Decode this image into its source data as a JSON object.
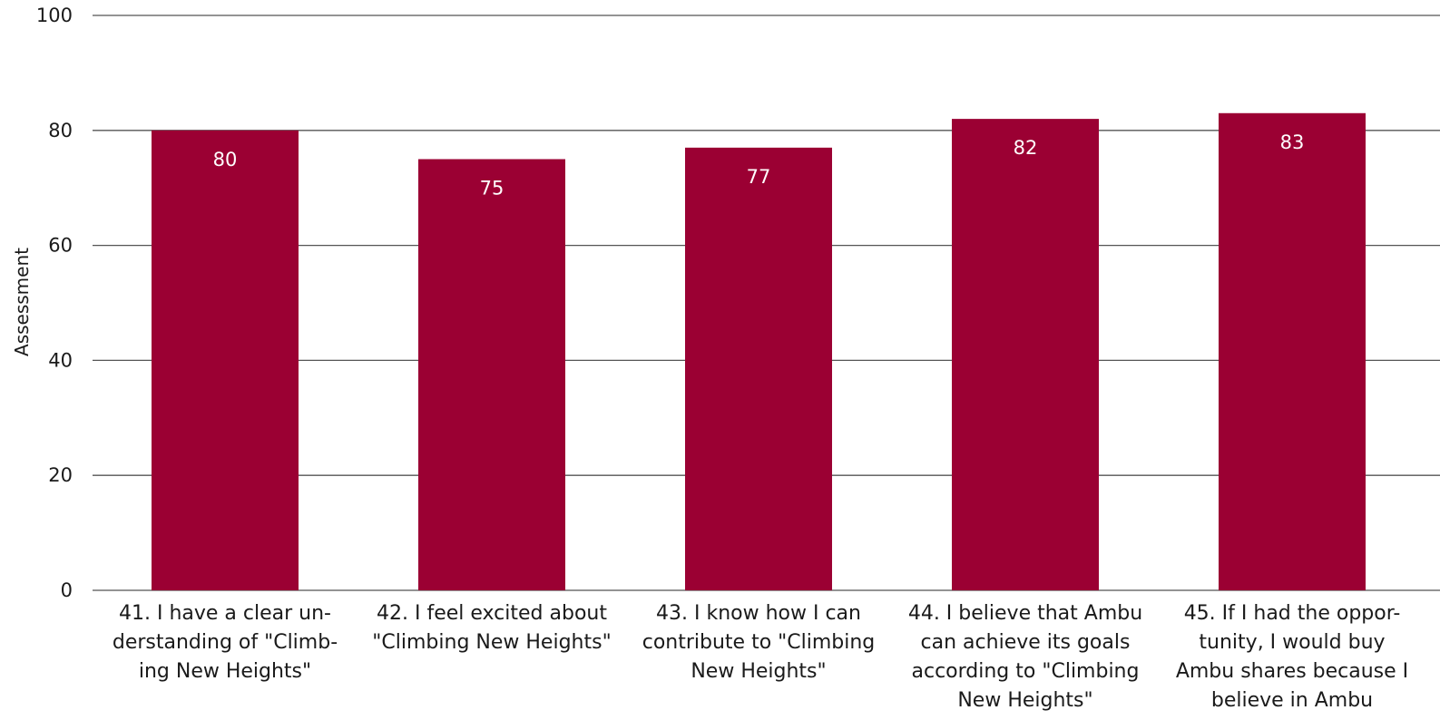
{
  "chart_data": {
    "type": "bar",
    "ylabel": "Assessment",
    "ylim": [
      0,
      100
    ],
    "yticks": [
      0,
      20,
      40,
      60,
      80,
      100
    ],
    "grid": true,
    "bar_color": "#9b0033",
    "categories": [
      [
        "41. I have a clear un-",
        "derstanding of \"Climb-",
        "ing New Heights\""
      ],
      [
        "42. I feel excited about",
        "\"Climbing New Heights\""
      ],
      [
        "43. I know how I can",
        "contribute to \"Climbing",
        "New Heights\""
      ],
      [
        "44. I believe that Ambu",
        "can achieve its goals",
        "according to \"Climbing",
        "New Heights\""
      ],
      [
        "45. If I had the oppor-",
        "tunity, I would buy",
        "Ambu shares because I",
        "believe in Ambu"
      ]
    ],
    "values": [
      80,
      75,
      77,
      82,
      83
    ],
    "data_labels": [
      "80",
      "75",
      "77",
      "82",
      "83"
    ]
  }
}
